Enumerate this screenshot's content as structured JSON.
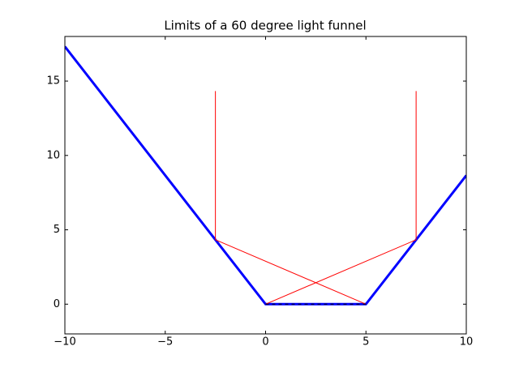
{
  "chart_data": {
    "type": "line",
    "title": "Limits of a 60 degree light funnel",
    "series": [
      {
        "color": "#0000ff",
        "width": 3,
        "dash": false,
        "x": [
          -10,
          0,
          5,
          10
        ],
        "values": [
          17.32,
          0,
          0,
          8.66
        ]
      },
      {
        "color": "#ff0000",
        "width": 1,
        "dash": false,
        "x": [
          -2.5,
          -2.5,
          null,
          7.5,
          7.5,
          null,
          -2.5,
          5,
          null,
          0,
          7.5
        ],
        "values": [
          14.33,
          4.33,
          null,
          14.33,
          4.33,
          null,
          4.33,
          0,
          null,
          0,
          4.33
        ]
      },
      {
        "color": "#000000",
        "width": 1,
        "dash": true,
        "x": [
          0,
          5
        ],
        "values": [
          0,
          0
        ]
      }
    ],
    "xlim": [
      -10,
      10
    ],
    "ylim": [
      -2,
      18
    ],
    "xticks": [
      {
        "value": -10,
        "label": "−10"
      },
      {
        "value": -5,
        "label": "−5"
      },
      0,
      5,
      10
    ],
    "yticks": [
      0,
      5,
      10,
      15
    ],
    "grid": false
  }
}
